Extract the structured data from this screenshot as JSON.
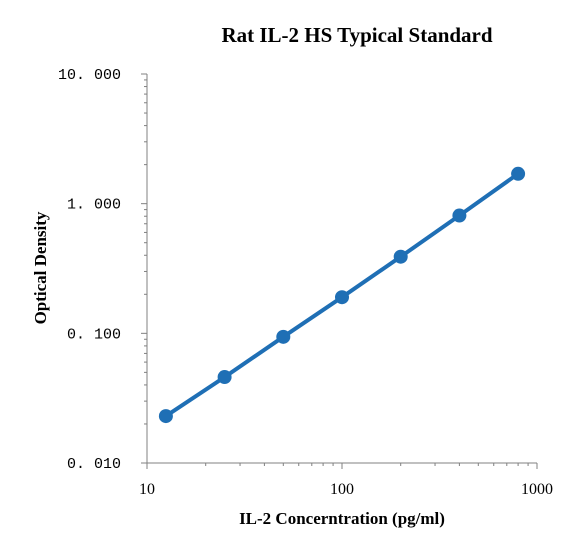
{
  "chart_data": {
    "type": "line",
    "title": "Rat IL-2 HS Typical Standard",
    "xlabel": "IL-2 Concerntration (pg/ml)",
    "ylabel": "Optical Density",
    "xscale": "log",
    "yscale": "log",
    "xlim": [
      10,
      1000
    ],
    "ylim": [
      0.01,
      10
    ],
    "x_ticks": [
      "10",
      "100",
      "1000"
    ],
    "y_ticks": [
      "0. 010",
      "0. 100",
      "1. 000",
      "10. 000"
    ],
    "series": [
      {
        "color": "#1f6fb5",
        "x": [
          12.5,
          25,
          50,
          100,
          200,
          400,
          800
        ],
        "y": [
          0.023,
          0.046,
          0.094,
          0.19,
          0.39,
          0.81,
          1.7
        ]
      }
    ],
    "grid": false,
    "legend": "none"
  }
}
